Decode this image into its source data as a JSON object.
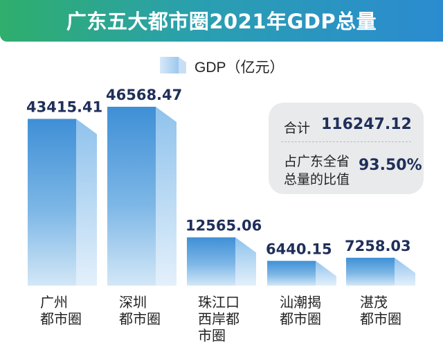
{
  "header": {
    "title": "广东五大都市圈2021年GDP总量"
  },
  "legend": {
    "label": "GDP（亿元）"
  },
  "summary": {
    "total_label": "合计",
    "total_value": "116247.12",
    "share_label_line1": "占广东全省",
    "share_label_line2": "总量的比值",
    "share_value": "93.50%"
  },
  "colors": {
    "bar_light": "#bcd9f1",
    "bar_mid": "#7db7e6",
    "bar_dark": "#3f8fd6",
    "value_text": "#1f2f5a"
  },
  "chart_data": {
    "type": "bar",
    "categories": [
      "广州都市圈",
      "深圳都市圈",
      "珠江口西岸都市圈",
      "汕潮揭都市圈",
      "湛茂都市圈"
    ],
    "category_label_lines": [
      [
        "广州",
        "都市圈"
      ],
      [
        "深圳",
        "都市圈"
      ],
      [
        "珠江口",
        "西岸都",
        "市圈"
      ],
      [
        "汕潮揭",
        "都市圈"
      ],
      [
        "湛茂",
        "都市圈"
      ]
    ],
    "values": [
      43415.41,
      46568.47,
      12565.06,
      6440.15,
      7258.03
    ],
    "value_labels": [
      "43415.41",
      "46568.47",
      "12565.06",
      "6440.15",
      "7258.03"
    ],
    "series": [
      {
        "name": "GDP（亿元）",
        "values": [
          43415.41,
          46568.47,
          12565.06,
          6440.15,
          7258.03
        ]
      }
    ],
    "title": "广东五大都市圈2021年GDP总量",
    "xlabel": "",
    "ylabel": "",
    "ylim": [
      0,
      46568.47
    ],
    "grid": false,
    "legend_position": "top"
  }
}
